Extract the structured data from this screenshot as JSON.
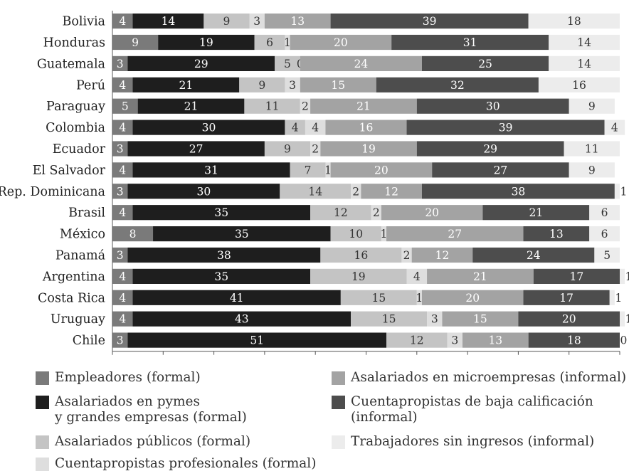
{
  "chart_data": {
    "type": "bar",
    "orientation": "horizontal",
    "stacked": true,
    "categories": [
      "Bolivia",
      "Honduras",
      "Guatemala",
      "Perú",
      "Paraguay",
      "Colombia",
      "Ecuador",
      "El Salvador",
      "Rep. Dominicana",
      "Brasil",
      "México",
      "Panamá",
      "Argentina",
      "Costa Rica",
      "Uruguay",
      "Chile"
    ],
    "series": [
      {
        "name": "Empleadores (formal)",
        "color": "#7a7a7a",
        "values": [
          4,
          9,
          3,
          4,
          5,
          4,
          3,
          4,
          3,
          4,
          8,
          3,
          4,
          4,
          4,
          3
        ]
      },
      {
        "name": "Asalariados en pymes\ny grandes empresas (formal)",
        "color": "#1e1e1e",
        "values": [
          14,
          19,
          29,
          21,
          21,
          30,
          27,
          31,
          30,
          35,
          35,
          38,
          35,
          41,
          43,
          51
        ]
      },
      {
        "name": "Asalariados públicos (formal)",
        "color": "#c4c4c4",
        "values": [
          9,
          6,
          5,
          9,
          11,
          4,
          9,
          7,
          14,
          12,
          10,
          16,
          19,
          15,
          15,
          12
        ]
      },
      {
        "name": "Cuentapropistas profesionales (formal)",
        "color": "#dedede",
        "values": [
          3,
          1,
          0,
          3,
          2,
          4,
          2,
          1,
          2,
          2,
          1,
          2,
          4,
          1,
          3,
          3
        ]
      },
      {
        "name": "Asalariados en microempresas (informal)",
        "color": "#a3a3a3",
        "values": [
          13,
          20,
          24,
          15,
          21,
          16,
          19,
          20,
          12,
          20,
          27,
          12,
          21,
          20,
          15,
          13
        ]
      },
      {
        "name": "Cuentapropistas de baja calificación\n(informal)",
        "color": "#4d4d4d",
        "values": [
          39,
          31,
          25,
          32,
          30,
          39,
          29,
          27,
          38,
          21,
          13,
          24,
          17,
          17,
          20,
          18
        ]
      },
      {
        "name": "Trabajadores sin ingresos (informal)",
        "color": "#ececec",
        "values": [
          18,
          14,
          14,
          16,
          9,
          4,
          11,
          9,
          1,
          6,
          6,
          5,
          1,
          1,
          1,
          0
        ]
      }
    ],
    "x_ticks": [
      "0",
      "10",
      "20",
      "30",
      "40",
      "50",
      "60",
      "70",
      "80",
      "90",
      "100"
    ],
    "xlim": [
      0,
      100
    ],
    "grid": false,
    "legend_position": "bottom"
  }
}
